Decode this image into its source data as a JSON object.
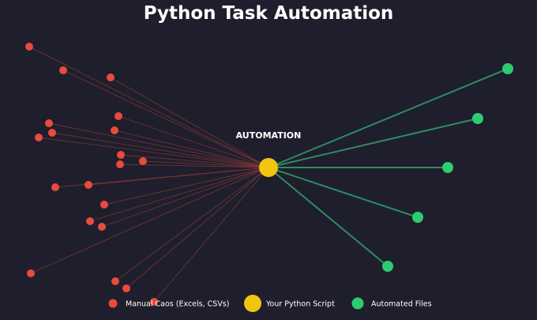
{
  "title": "Python Task Automation",
  "center_label": "AUTOMATION",
  "colors": {
    "background": "#1f1e2c",
    "manual": "#e74c3c",
    "manual_link": "#8a3a3a",
    "script": "#f1c40f",
    "automated": "#2ecc71",
    "automated_link": "#2e8b62",
    "text": "#ffffff"
  },
  "legend": {
    "manual": "Manual Caos (Excels, CSVs)",
    "script": "Your Python Script",
    "automated": "Automated Files"
  }
}
